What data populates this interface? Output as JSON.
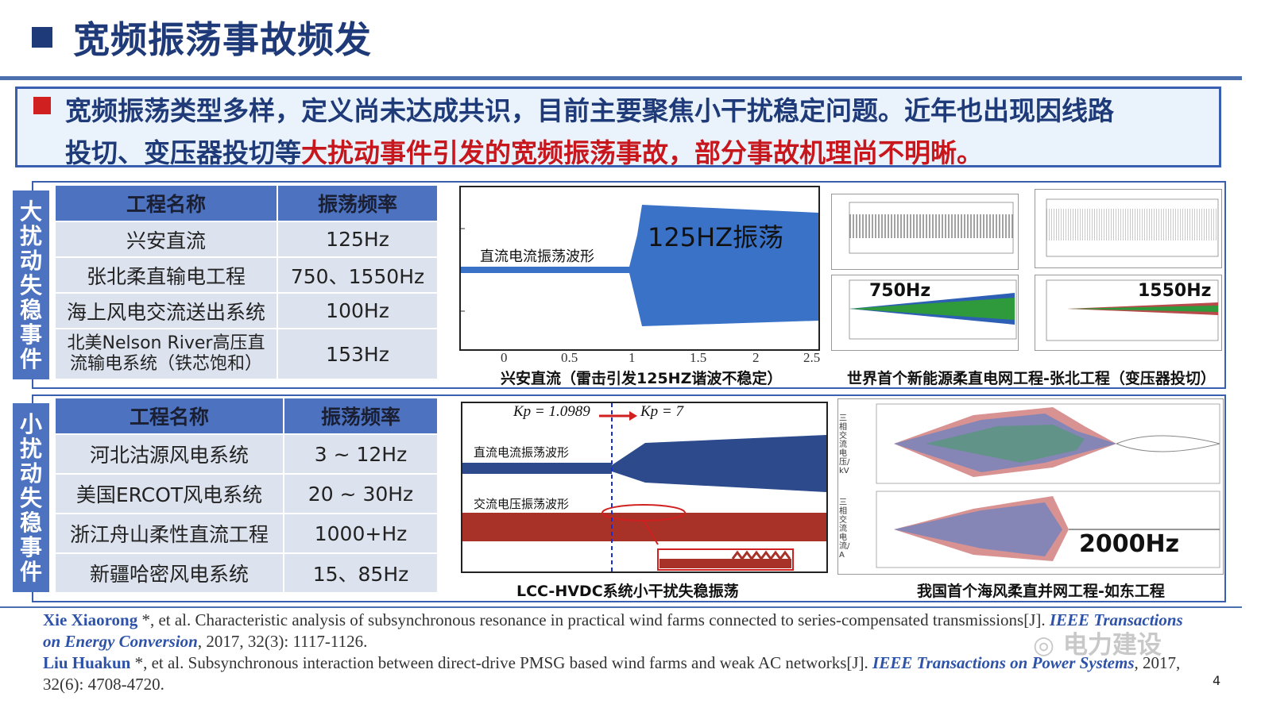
{
  "title": "宽频振荡事故频发",
  "banner": {
    "line1": "宽频振荡类型多样，定义尚未达成共识，目前主要聚焦小干扰稳定问题。近年也出现因线路",
    "line2_plain": "投切、变压器投切等",
    "line2_red": "大扰动事件引发的宽频振荡事故，部分事故机理尚不明晰。"
  },
  "large_section": {
    "tab_label": [
      "大",
      "扰",
      "动",
      "失",
      "稳",
      "事",
      "件"
    ],
    "table": {
      "headers": [
        "工程名称",
        "振荡频率"
      ],
      "rows": [
        [
          "兴安直流",
          "125Hz"
        ],
        [
          "张北柔直输电工程",
          "750、1550Hz"
        ],
        [
          "海上风电交流送出系统",
          "100Hz"
        ],
        [
          "北美Nelson River高压直流输电系统（铁芯饱和）",
          "153Hz"
        ]
      ]
    },
    "chart1": {
      "label": "直流电流振荡波形",
      "overlay": "125HZ振荡",
      "x_ticks": [
        "0",
        "0.5",
        "1",
        "1.5",
        "2",
        "2.5"
      ],
      "caption": "兴安直流（雷击引发125HZ谐波不稳定）",
      "color": "#3a72c8"
    },
    "chart2": {
      "label_750": "750Hz",
      "label_1550": "1550Hz",
      "caption": "世界首个新能源柔直电网工程-张北工程（变压器投切）"
    }
  },
  "small_section": {
    "tab_label": [
      "小",
      "扰",
      "动",
      "失",
      "稳",
      "事",
      "件"
    ],
    "table": {
      "headers": [
        "工程名称",
        "振荡频率"
      ],
      "rows": [
        [
          "河北沽源风电系统",
          "3 ~ 12Hz"
        ],
        [
          "美国ERCOT风电系统",
          "20 ~ 30Hz"
        ],
        [
          "浙江舟山柔性直流工程",
          "1000+Hz"
        ],
        [
          "新疆哈密风电系统",
          "15、85Hz"
        ]
      ]
    },
    "chart3": {
      "kp_before": "Kp = 1.0989",
      "kp_after": "Kp = 7",
      "label_dc": "直流电流振荡波形",
      "label_ac": "交流电压振荡波形",
      "caption": "LCC-HVDC系统小干扰失稳振荡",
      "dc_color": "#2c4a8c",
      "ac_color": "#a83228"
    },
    "chart4": {
      "overlay": "2000Hz",
      "ylabel_top": "三相交流电压/kV",
      "ylabel_bottom": "三相交流电流/A",
      "caption": "我国首个海风柔直并网工程-如东工程"
    }
  },
  "refs": [
    {
      "author": "Xie Xiaorong",
      "mid": " *, et al. Characteristic analysis of subsynchronous resonance in practical wind farms connected to series-compensated transmissions[J]. ",
      "journal": "IEEE Transactions on Energy Conversion",
      "tail": ", 2017, 32(3): 1117-1126."
    },
    {
      "author": "Liu Huakun",
      "mid": " *, et al. Subsynchronous interaction between direct-drive PMSG based wind farms and weak AC networks[J]. ",
      "journal": "IEEE Transactions on Power Systems",
      "tail": ", 2017, 32(6): 4708-4720."
    }
  ],
  "page_number": "4",
  "watermark": "电力建设"
}
